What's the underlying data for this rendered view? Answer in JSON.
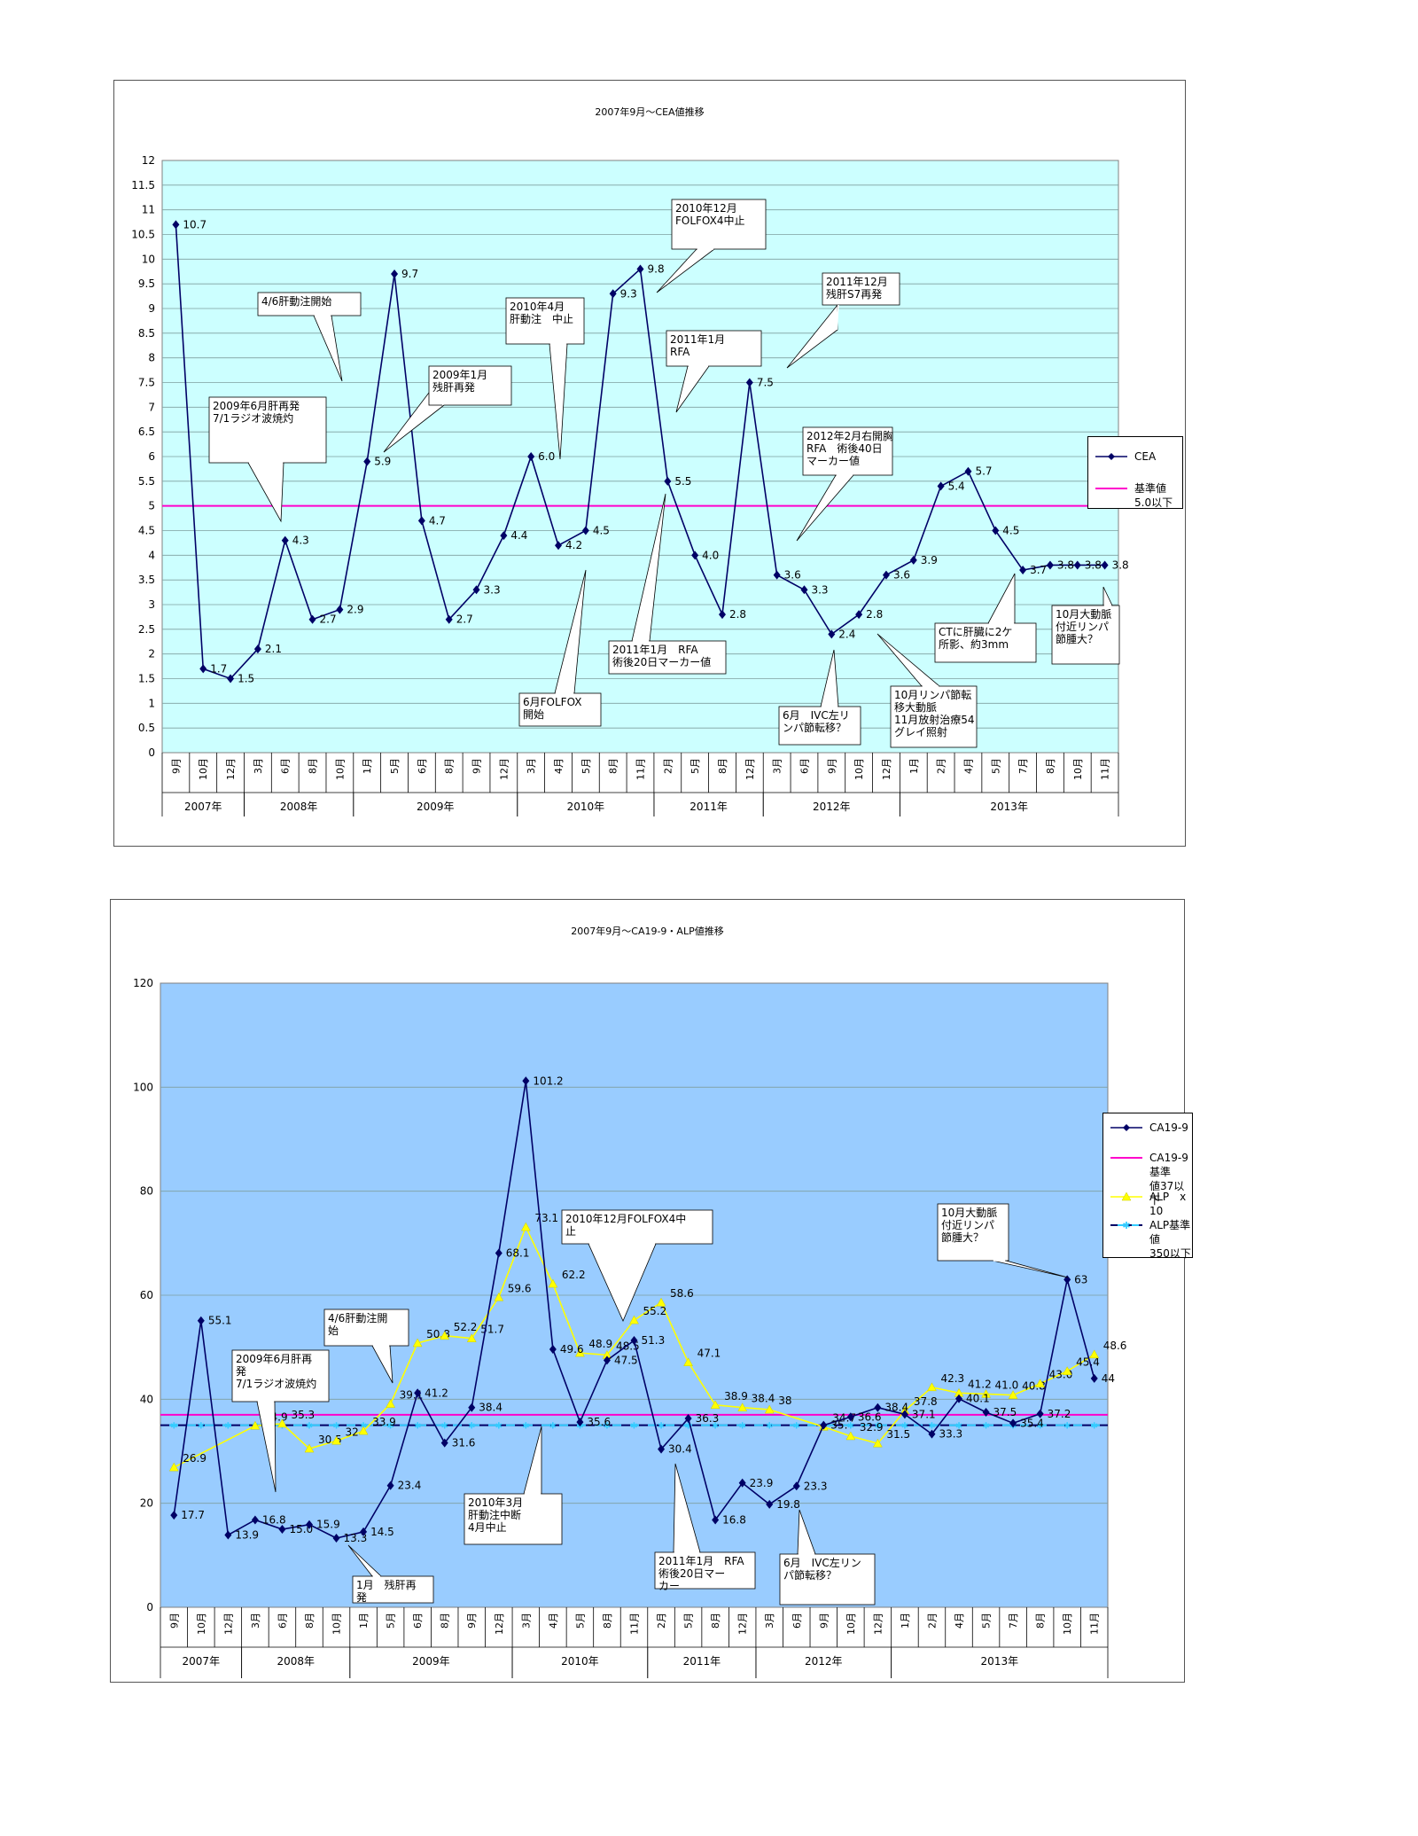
{
  "chart_data": [
    {
      "type": "line",
      "title": "2007年9月～CEA値推移",
      "y_ticks": [
        "0",
        "0.5",
        "1",
        "1.5",
        "2",
        "2.5",
        "3",
        "3.5",
        "4",
        "4.5",
        "5",
        "5.5",
        "6",
        "6.5",
        "7",
        "7.5",
        "8",
        "8.5",
        "9",
        "9.5",
        "10",
        "10.5",
        "11",
        "11.5",
        "12"
      ],
      "ylim": [
        0,
        12
      ],
      "grid": true,
      "legend_position": "right",
      "plot_bg": "#ccffff",
      "months": [
        "9月",
        "10月",
        "12月",
        "3月",
        "6月",
        "8月",
        "10月",
        "1月",
        "5月",
        "6月",
        "8月",
        "9月",
        "12月",
        "3月",
        "4月",
        "5月",
        "8月",
        "11月",
        "2月",
        "5月",
        "8月",
        "12月",
        "3月",
        "6月",
        "9月",
        "10月",
        "12月",
        "1月",
        "2月",
        "4月",
        "5月",
        "7月",
        "8月",
        "10月",
        "11月"
      ],
      "years": [
        {
          "label": "2007年",
          "start": 0,
          "count": 3
        },
        {
          "label": "2008年",
          "start": 3,
          "count": 4
        },
        {
          "label": "2009年",
          "start": 7,
          "count": 6
        },
        {
          "label": "2010年",
          "start": 13,
          "count": 5
        },
        {
          "label": "2011年",
          "start": 18,
          "count": 4
        },
        {
          "label": "2012年",
          "start": 22,
          "count": 5
        },
        {
          "label": "2013年",
          "start": 27,
          "count": 8
        }
      ],
      "series": [
        {
          "name": "CEA",
          "color": "#000066",
          "marker": "diamond",
          "values": [
            10.7,
            1.7,
            1.5,
            2.1,
            4.3,
            2.7,
            2.9,
            5.9,
            9.7,
            4.7,
            2.7,
            3.3,
            4.4,
            6.0,
            4.2,
            4.5,
            9.3,
            9.8,
            5.5,
            4.0,
            2.8,
            7.5,
            3.6,
            3.3,
            2.4,
            2.8,
            3.6,
            3.9,
            5.4,
            5.7,
            4.5,
            3.7,
            3.8,
            3.8,
            3.8
          ],
          "labels": [
            "10.7",
            "1.7",
            "1.5",
            "2.1",
            "4.3",
            "2.7",
            "2.9",
            "5.9",
            "9.7",
            "4.7",
            "2.7",
            "3.3",
            "4.4",
            "6.0",
            "4.2",
            "4.5",
            "9.3",
            "9.8",
            "5.5",
            "4.0",
            "2.8",
            "7.5",
            "3.6",
            "3.3",
            "2.4",
            "2.8",
            "3.6",
            "3.9",
            "5.4",
            "5.7",
            "4.5",
            "3.7",
            "3.8",
            "3.8",
            "3.8"
          ]
        },
        {
          "name": "基準値5.0以下",
          "color": "#ff00cc",
          "constant": 5
        }
      ],
      "annotations": [
        {
          "text": [
            "2009年6月肝再発",
            "7/1ラジオ波焼灼"
          ]
        },
        {
          "text": [
            "4/6肝動注開始"
          ]
        },
        {
          "text": [
            "2009年1月",
            "残肝再発"
          ]
        },
        {
          "text": [
            "2010年4月",
            "肝動注　中止"
          ]
        },
        {
          "text": [
            "2010年12月",
            "FOLFOX4中止"
          ]
        },
        {
          "text": [
            "2011年1月",
            "RFA"
          ]
        },
        {
          "text": [
            "2011年12月",
            "残肝S7再発"
          ]
        },
        {
          "text": [
            "2012年2月右開胸",
            "RFA　術後40日",
            "マーカー値"
          ]
        },
        {
          "text": [
            "6月FOLFOX",
            "開始"
          ]
        },
        {
          "text": [
            "2011年1月　RFA",
            "術後20日マーカー値"
          ]
        },
        {
          "text": [
            "6月　IVC左リ",
            "ンパ節転移？"
          ]
        },
        {
          "text": [
            "10月リンパ節転",
            "移大動脈",
            "11月放射治療54",
            "グレイ照射"
          ]
        },
        {
          "text": [
            "CTに肝臓に2ケ",
            "所影、約3mm"
          ]
        },
        {
          "text": [
            "10月大動脈",
            "付近リンパ",
            "節腫大？"
          ]
        }
      ]
    },
    {
      "type": "line",
      "title": "2007年9月～CA19-9・ALP値推移",
      "y_ticks": [
        "0",
        "20",
        "40",
        "60",
        "80",
        "100",
        "120"
      ],
      "ylim": [
        0,
        120
      ],
      "grid": true,
      "legend_position": "right",
      "plot_bg": "#99ccff",
      "months": [
        "9月",
        "10月",
        "12月",
        "3月",
        "6月",
        "8月",
        "10月",
        "1月",
        "5月",
        "6月",
        "8月",
        "9月",
        "12月",
        "3月",
        "4月",
        "5月",
        "8月",
        "11月",
        "2月",
        "5月",
        "8月",
        "12月",
        "3月",
        "6月",
        "9月",
        "10月",
        "12月",
        "1月",
        "2月",
        "4月",
        "5月",
        "7月",
        "8月",
        "10月",
        "11月"
      ],
      "years": [
        {
          "label": "2007年",
          "start": 0,
          "count": 3
        },
        {
          "label": "2008年",
          "start": 3,
          "count": 4
        },
        {
          "label": "2009年",
          "start": 7,
          "count": 6
        },
        {
          "label": "2010年",
          "start": 13,
          "count": 5
        },
        {
          "label": "2011年",
          "start": 18,
          "count": 4
        },
        {
          "label": "2012年",
          "start": 22,
          "count": 5
        },
        {
          "label": "2013年",
          "start": 27,
          "count": 8
        }
      ],
      "series": [
        {
          "name": "CA19-9",
          "color": "#000066",
          "marker": "diamond",
          "values": [
            17.7,
            55.1,
            13.9,
            16.8,
            15.0,
            15.9,
            13.3,
            14.5,
            23.4,
            41.2,
            31.6,
            38.4,
            68.1,
            101.2,
            49.6,
            35.6,
            47.5,
            51.3,
            30.4,
            36.3,
            16.8,
            23.9,
            19.8,
            23.3,
            35.0,
            36.6,
            38.4,
            37.1,
            33.3,
            40.1,
            37.5,
            35.4,
            37.2,
            63,
            44
          ],
          "labels": [
            "17.7",
            "55.1",
            "13.9",
            "16.8",
            "15.0",
            "15.9",
            "13.3",
            "14.5",
            "23.4",
            "41.2",
            "31.6",
            "38.4",
            "68.1",
            "101.2",
            "49.6",
            "35.6",
            "47.5",
            "51.3",
            "30.4",
            "36.3",
            "16.8",
            "23.9",
            "19.8",
            "23.3",
            "35.",
            "36.6",
            "38.4",
            "37.1",
            "33.3",
            "40.1",
            "37.5",
            "35.4",
            "37.2",
            "63",
            "44"
          ]
        },
        {
          "name": "CA19-9基準値37以下",
          "legend_lines": [
            "CA19-9基準",
            "値37以下"
          ],
          "color": "#ff00cc",
          "constant": 37
        },
        {
          "name": "ALP x 10",
          "legend_lines": [
            "ALP　x　10"
          ],
          "color": "#ffff00",
          "marker": "triangle",
          "values": [
            26.9,
            null,
            null,
            34.9,
            35.3,
            30.5,
            32,
            33.9,
            39.1,
            50.8,
            52.2,
            51.7,
            59.6,
            73.1,
            62.2,
            48.9,
            48.5,
            55.2,
            58.6,
            47.1,
            38.9,
            38.4,
            38,
            null,
            34.7,
            32.9,
            31.5,
            37.8,
            42.3,
            41.2,
            41.0,
            40.8,
            43.0,
            45.4,
            48.6
          ],
          "labels": [
            "26.9",
            "",
            "",
            "34.9",
            "35.3",
            "30.5",
            "32",
            "33.9",
            "39.1",
            "50.8",
            "52.2",
            "51.7",
            "59.6",
            "73.1",
            "62.2",
            "48.9",
            "48.5",
            "55.2",
            "58.6",
            "47.1",
            "38.9",
            "38.4",
            "38",
            "",
            "34.7",
            "32.9",
            "31.5",
            "37.8",
            "42.3",
            "41.2",
            "41.0",
            "40.8",
            "43.0",
            "45.4",
            "48.6"
          ]
        },
        {
          "name": "ALP基準値350以下",
          "legend_lines": [
            "ALP基準値",
            "350以下"
          ],
          "color": "#000066",
          "dash_color": "#33ccff",
          "constant": 35
        }
      ],
      "annotations": [
        {
          "text": [
            "2009年6月肝再",
            "発",
            "7/1ラジオ波焼灼"
          ]
        },
        {
          "text": [
            "4/6肝動注開",
            "始"
          ]
        },
        {
          "text": [
            "1月　残肝再",
            "発"
          ]
        },
        {
          "text": [
            "2010年12月FOLFOX4中",
            "止"
          ]
        },
        {
          "text": [
            "2010年3月",
            "肝動注中断",
            "4月中止"
          ]
        },
        {
          "text": [
            "2011年1月　RFA",
            "術後20日マー",
            "カー"
          ]
        },
        {
          "text": [
            "6月　IVC左リン",
            "パ節転移？"
          ]
        },
        {
          "text": [
            "10月大動脈",
            "付近リンパ",
            "節腫大？"
          ]
        }
      ]
    }
  ]
}
